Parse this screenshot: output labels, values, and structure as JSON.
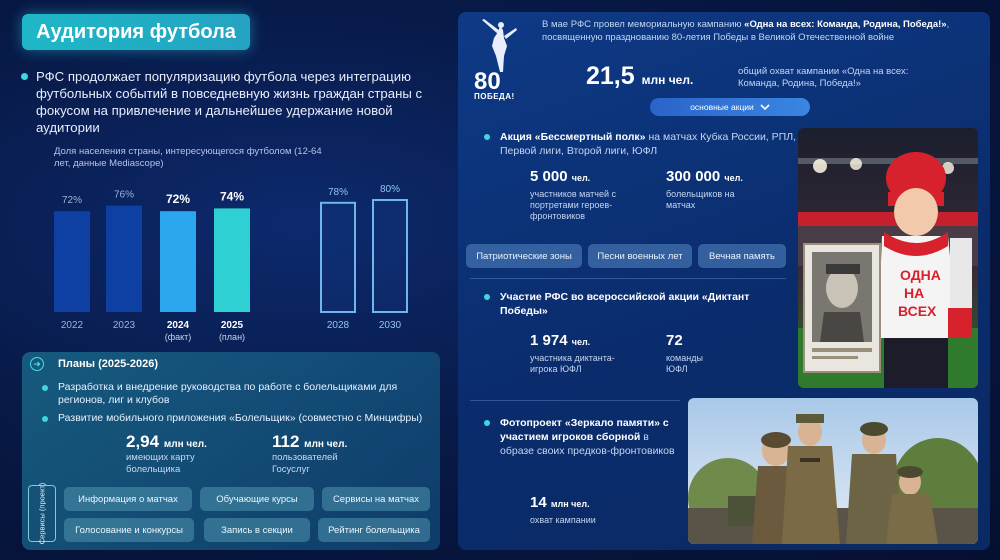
{
  "left": {
    "title": "Аудитория футбола",
    "intro": "РФС продолжает популяризацию футбола через интеграцию футбольных событий в повседневную жизнь граждан страны с фокусом на привлечение и дальнейшее удержание новой аудитории",
    "chart_caption": "Доля населения страны, интересующегося футболом (12-64 лет, данные Mediascope)"
  },
  "chart_data": {
    "type": "bar",
    "title": "Доля населения страны, интересующегося футболом (12-64 лет, данные Mediascope)",
    "categories": [
      "2022",
      "2023",
      "2024",
      "2025",
      "2028",
      "2030"
    ],
    "category_sublabels": [
      "",
      "",
      "(факт)",
      "(план)",
      "",
      ""
    ],
    "values": [
      72,
      76,
      72,
      74,
      78,
      80
    ],
    "value_labels": [
      "72%",
      "76%",
      "72%",
      "74%",
      "78%",
      "80%"
    ],
    "unit": "%",
    "bar_styles": [
      "historical",
      "historical",
      "fact",
      "plan",
      "target",
      "target"
    ],
    "colors": {
      "historical": "#0e3fa3",
      "fact": "#2aa7ee",
      "plan": "#2fd0d4",
      "target_outline": "#6fb6ec"
    },
    "ylim": [
      0,
      100
    ],
    "grid": false,
    "legend": "none"
  },
  "plans": {
    "title": "Планы (2025-2026)",
    "items": [
      "Разработка и внедрение руководства по работе с болельщиками для регионов, лиг и клубов",
      "Развитие мобильного приложения «Болельщик» (совместно с Минцифры)"
    ],
    "stats": [
      {
        "value": "2,94",
        "unit": "млн чел.",
        "label": "имеющих карту болельщика"
      },
      {
        "value": "112",
        "unit": "млн чел.",
        "label": "пользователей Госуслуг"
      }
    ],
    "services_label": "Сервисы (проект)",
    "services": [
      "Информация о матчах",
      "Обучающие курсы",
      "Сервисы на матчах",
      "Голосование и конкурсы",
      "Запись в секции",
      "Рейтинг болельщика"
    ]
  },
  "right": {
    "header_prefix": "В мае РФС провел мемориальную кампанию ",
    "header_bold": "«Одна на всех: Команда, Родина, Победа!»",
    "header_suffix": ", посвященную празднованию 80-летия Победы в Великой Отечественной войне",
    "logo_number": "80",
    "logo_word": "ПОБЕДА!",
    "reach_value": "21,5",
    "reach_unit": "млн чел.",
    "reach_label": "общий охват кампании «Одна на всех: Команда, Родина, Победа!»",
    "pill_label": "основные акции",
    "action1": {
      "title_bold": "Акция «Бессмертный полк»",
      "title_rest": " на матчах Кубка России, РПЛ, Первой лиги, Второй лиги, ЮФЛ",
      "stats": [
        {
          "value": "5 000",
          "unit": "чел.",
          "label": "участников матчей с портретами героев-фронтовиков"
        },
        {
          "value": "300 000",
          "unit": "чел.",
          "label": "болельщиков на матчах"
        }
      ],
      "tags": [
        "Патриотические зоны",
        "Песни военных лет",
        "Вечная память"
      ]
    },
    "action2": {
      "title_bold": "Участие РФС во всероссийской акции «Диктант Победы»",
      "stats": [
        {
          "value": "1 974",
          "unit": "чел.",
          "label": "участника диктанта-игрока ЮФЛ"
        },
        {
          "value": "72",
          "unit": "",
          "label": "команды ЮФЛ"
        }
      ]
    },
    "action3": {
      "title_bold": "Фотопроект «Зеркало памяти» с участием игроков сборной",
      "title_rest": " в образе своих предков-фронтовиков",
      "stats": [
        {
          "value": "14",
          "unit": "млн чел.",
          "label": "охват кампании"
        }
      ]
    },
    "photo1_sign": [
      "ОДНА",
      "НА",
      "ВСЕХ"
    ]
  }
}
